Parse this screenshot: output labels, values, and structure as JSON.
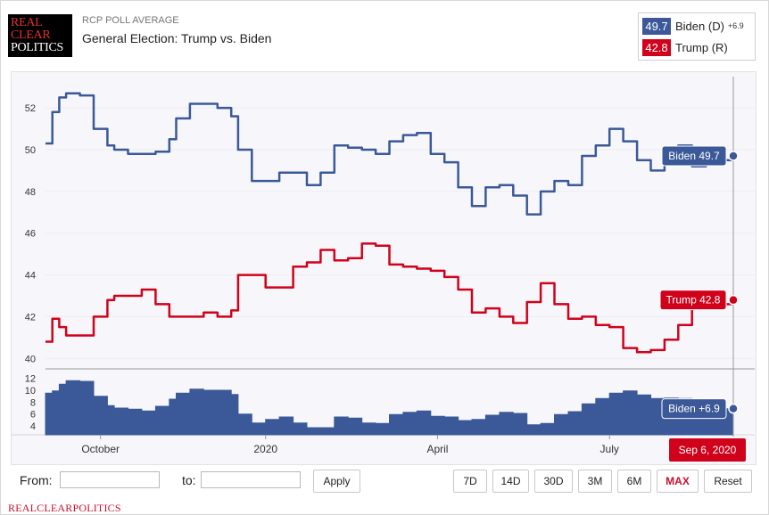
{
  "header": {
    "logo": [
      "REAL",
      "CLEAR",
      "POLITICS"
    ],
    "label": "RCP POLL AVERAGE",
    "title": "General Election: Trump vs. Biden"
  },
  "legend": {
    "biden": {
      "value": "49.7",
      "name": "Biden (D)",
      "spread": "+6.9",
      "color": "#3b5998"
    },
    "trump": {
      "value": "42.8",
      "name": "Trump (R)",
      "color": "#d0021b"
    }
  },
  "controls": {
    "from_label": "From:",
    "to_label": "to:",
    "apply": "Apply",
    "ranges": [
      "7D",
      "14D",
      "30D",
      "3M",
      "6M",
      "MAX",
      "Reset"
    ],
    "active_range": "MAX"
  },
  "footer": "REALCLEARPOLITICS",
  "chart_data": {
    "type": "line",
    "title": "General Election: Trump vs. Biden",
    "x_tick_labels": [
      "October",
      "2020",
      "April",
      "July"
    ],
    "cursor_date_label": "Sep 6, 2020",
    "y_main_ticks": [
      40,
      42,
      44,
      46,
      48,
      50,
      52
    ],
    "y_main_range": [
      39.5,
      53.5
    ],
    "y_spread_ticks": [
      4,
      6,
      8,
      10,
      12
    ],
    "y_spread_range": [
      2.5,
      13
    ],
    "x_range": [
      0,
      100
    ],
    "series": [
      {
        "name": "Biden",
        "color": "#3b5998",
        "end_label": "Biden 49.7",
        "x": [
          0,
          1,
          2,
          3,
          5,
          7,
          9,
          10,
          12,
          14,
          16,
          18,
          19,
          21,
          23,
          25,
          27,
          28,
          30,
          32,
          34,
          36,
          38,
          40,
          42,
          44,
          46,
          48,
          50,
          52,
          54,
          56,
          58,
          60,
          62,
          64,
          66,
          68,
          70,
          72,
          74,
          76,
          78,
          80,
          82,
          84,
          86,
          88,
          90,
          92,
          94,
          96,
          98,
          100
        ],
        "values": [
          50.3,
          51.8,
          52.5,
          52.7,
          52.6,
          51.0,
          50.2,
          50.0,
          49.8,
          49.8,
          49.9,
          50.5,
          51.5,
          52.2,
          52.2,
          52.0,
          51.6,
          50.0,
          48.5,
          48.5,
          48.9,
          48.9,
          48.3,
          48.9,
          50.2,
          50.1,
          50.0,
          49.8,
          50.4,
          50.7,
          50.8,
          49.8,
          49.4,
          48.2,
          47.3,
          48.2,
          48.3,
          47.8,
          46.9,
          48.0,
          48.5,
          48.3,
          49.7,
          50.2,
          51.0,
          50.4,
          49.5,
          49.0,
          49.6,
          50.2,
          49.2,
          49.6,
          49.5,
          49.7
        ]
      },
      {
        "name": "Trump",
        "color": "#d0021b",
        "end_label": "Trump 42.8",
        "x": [
          0,
          1,
          2,
          3,
          5,
          7,
          9,
          10,
          12,
          14,
          16,
          18,
          19,
          21,
          23,
          25,
          27,
          28,
          30,
          32,
          34,
          36,
          38,
          40,
          42,
          44,
          46,
          48,
          50,
          52,
          54,
          56,
          58,
          60,
          62,
          64,
          66,
          68,
          70,
          72,
          74,
          76,
          78,
          80,
          82,
          84,
          86,
          88,
          90,
          92,
          94,
          96,
          98,
          100
        ],
        "values": [
          40.8,
          41.9,
          41.5,
          41.1,
          41.1,
          42.0,
          42.8,
          43.0,
          43.0,
          43.3,
          42.6,
          42.0,
          42.0,
          42.0,
          42.2,
          42.0,
          42.3,
          44.0,
          44.0,
          43.4,
          43.4,
          44.4,
          44.6,
          45.2,
          44.7,
          44.8,
          45.5,
          45.4,
          44.5,
          44.4,
          44.3,
          44.2,
          43.9,
          43.3,
          42.2,
          42.4,
          42.0,
          41.7,
          42.7,
          43.6,
          42.6,
          41.9,
          42.0,
          41.6,
          41.5,
          40.5,
          40.3,
          40.4,
          40.9,
          41.6,
          42.4,
          42.6,
          42.6,
          42.8
        ]
      },
      {
        "name": "Biden spread",
        "color": "#3b5998",
        "end_label": "Biden +6.9",
        "x": [
          0,
          1,
          2,
          3,
          5,
          7,
          9,
          10,
          12,
          14,
          16,
          18,
          19,
          21,
          23,
          25,
          27,
          28,
          30,
          32,
          34,
          36,
          38,
          40,
          42,
          44,
          46,
          48,
          50,
          52,
          54,
          56,
          58,
          60,
          62,
          64,
          66,
          68,
          70,
          72,
          74,
          76,
          78,
          80,
          82,
          84,
          86,
          88,
          90,
          92,
          94,
          96,
          98,
          100
        ],
        "values": [
          9.5,
          9.9,
          11.0,
          11.6,
          11.5,
          9.0,
          7.4,
          7.0,
          6.8,
          6.5,
          7.3,
          8.5,
          9.5,
          10.2,
          10.0,
          10.0,
          9.3,
          6.0,
          4.5,
          5.1,
          5.5,
          4.5,
          3.7,
          3.7,
          5.5,
          5.3,
          4.5,
          4.4,
          5.9,
          6.3,
          6.5,
          5.6,
          5.5,
          4.9,
          5.1,
          5.8,
          6.3,
          6.1,
          4.2,
          4.4,
          5.9,
          6.4,
          7.7,
          8.6,
          9.5,
          9.9,
          9.2,
          8.6,
          8.7,
          8.6,
          6.8,
          7.0,
          6.9,
          6.9
        ]
      }
    ]
  }
}
